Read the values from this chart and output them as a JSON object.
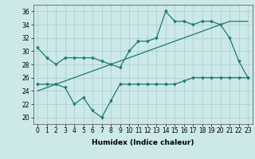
{
  "xlabel": "Humidex (Indice chaleur)",
  "ylabel": "",
  "bg_color": "#cce8e8",
  "grid_color": "#aacccc",
  "line_color": "#1a7a6e",
  "xlim": [
    -0.5,
    23.5
  ],
  "ylim": [
    19,
    37
  ],
  "yticks": [
    20,
    22,
    24,
    26,
    28,
    30,
    32,
    34,
    36
  ],
  "xticks": [
    0,
    1,
    2,
    3,
    4,
    5,
    6,
    7,
    8,
    9,
    10,
    11,
    12,
    13,
    14,
    15,
    16,
    17,
    18,
    19,
    20,
    21,
    22,
    23
  ],
  "line1": [
    30.5,
    29.0,
    28.0,
    29.0,
    29.0,
    29.0,
    29.0,
    28.5,
    28.0,
    27.5,
    30.0,
    31.5,
    31.5,
    32.0,
    36.0,
    34.5,
    34.5,
    34.0,
    34.5,
    34.5,
    34.0,
    32.0,
    28.5,
    26.0
  ],
  "line2": [
    24.0,
    24.5,
    25.0,
    25.5,
    26.0,
    26.5,
    27.0,
    27.5,
    28.0,
    28.5,
    29.0,
    29.5,
    30.0,
    30.5,
    31.0,
    31.5,
    32.0,
    32.5,
    33.0,
    33.5,
    34.0,
    34.5,
    34.5,
    34.5
  ],
  "line3": [
    25.0,
    25.0,
    25.0,
    24.5,
    22.0,
    23.0,
    21.0,
    20.0,
    22.5,
    25.0,
    25.0,
    25.0,
    25.0,
    25.0,
    25.0,
    25.0,
    25.5,
    26.0,
    26.0,
    26.0,
    26.0,
    26.0,
    26.0,
    26.0
  ],
  "tick_fontsize": 5.5,
  "xlabel_fontsize": 6.5
}
